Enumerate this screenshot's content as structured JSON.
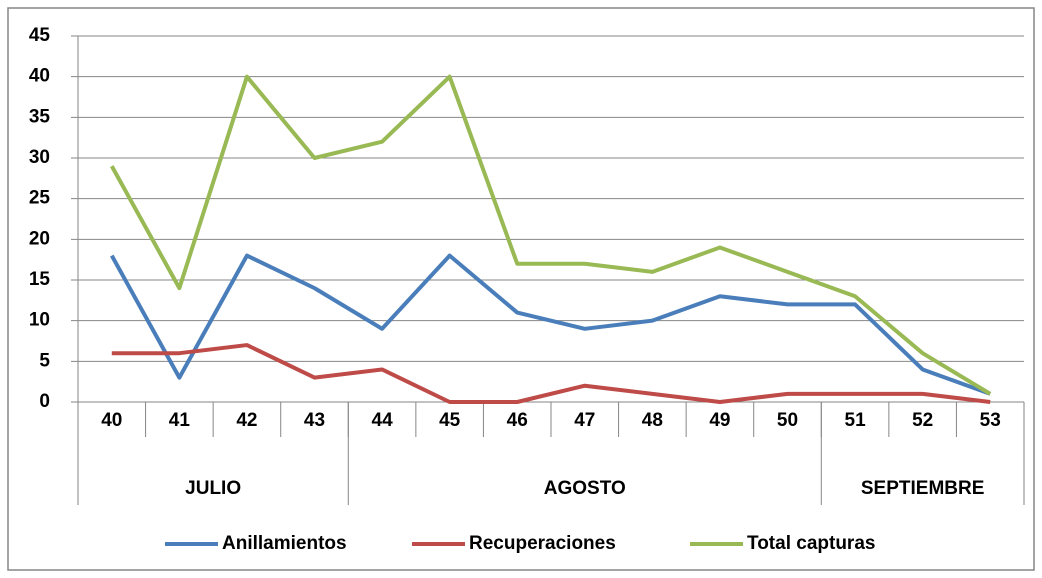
{
  "chart_data": {
    "type": "line",
    "categories": [
      "40",
      "41",
      "42",
      "43",
      "44",
      "45",
      "46",
      "47",
      "48",
      "49",
      "50",
      "51",
      "52",
      "53"
    ],
    "groups": [
      {
        "label": "JULIO",
        "count": 4
      },
      {
        "label": "AGOSTO",
        "count": 7
      },
      {
        "label": "SEPTIEMBRE",
        "count": 3
      }
    ],
    "series": [
      {
        "name": "Anillamientos",
        "color": "#4a7ebb",
        "values": [
          18,
          3,
          18,
          14,
          9,
          18,
          11,
          9,
          10,
          13,
          12,
          12,
          4,
          1
        ]
      },
      {
        "name": "Recuperaciones",
        "color": "#be4b48",
        "values": [
          6,
          6,
          7,
          3,
          4,
          0,
          0,
          2,
          1,
          0,
          1,
          1,
          1,
          0
        ]
      },
      {
        "name": "Total capturas",
        "color": "#98b954",
        "values": [
          29,
          14,
          40,
          30,
          32,
          40,
          17,
          17,
          16,
          19,
          16,
          13,
          6,
          1
        ]
      }
    ],
    "ylim": [
      0,
      45
    ],
    "yticks": [
      0,
      5,
      10,
      15,
      20,
      25,
      30,
      35,
      40,
      45
    ],
    "grid": true,
    "legend": "bottom"
  }
}
